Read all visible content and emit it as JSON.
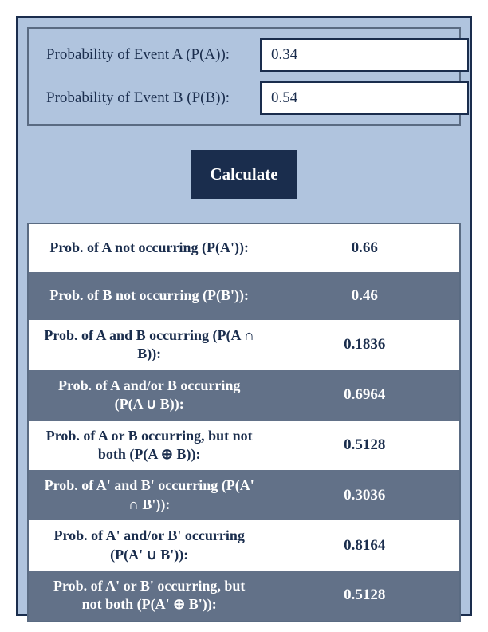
{
  "colors": {
    "panel_bg": "#b0c4de",
    "panel_border": "#1a2d4d",
    "accent_dark": "#1a2d4d",
    "stripe_dark": "#627188",
    "stripe_light": "#ffffff",
    "input_border": "#1a2d4d"
  },
  "inputs": {
    "a": {
      "label": "Probability of Event A (P(A)):",
      "value": "0.34"
    },
    "b": {
      "label": "Probability of Event B (P(B)):",
      "value": "0.54"
    }
  },
  "button": {
    "label": "Calculate"
  },
  "results": [
    {
      "label": "Prob. of A not occurring (P(A')):",
      "value": "0.66"
    },
    {
      "label": "Prob. of B not occurring (P(B')):",
      "value": "0.46"
    },
    {
      "label": "Prob. of A and B occurring (P(A ∩ B)):",
      "value": "0.1836"
    },
    {
      "label": "Prob. of A and/or B occurring (P(A ∪ B)):",
      "value": "0.6964"
    },
    {
      "label": "Prob. of A or B occurring, but not both (P(A ⊕ B)):",
      "value": "0.5128"
    },
    {
      "label": "Prob. of A' and B' occurring (P(A' ∩ B')):",
      "value": "0.3036"
    },
    {
      "label": "Prob. of A' and/or B' occurring (P(A' ∪ B')):",
      "value": "0.8164"
    },
    {
      "label": "Prob. of A' or B' occurring, but not both (P(A' ⊕ B')):",
      "value": "0.5128"
    }
  ]
}
